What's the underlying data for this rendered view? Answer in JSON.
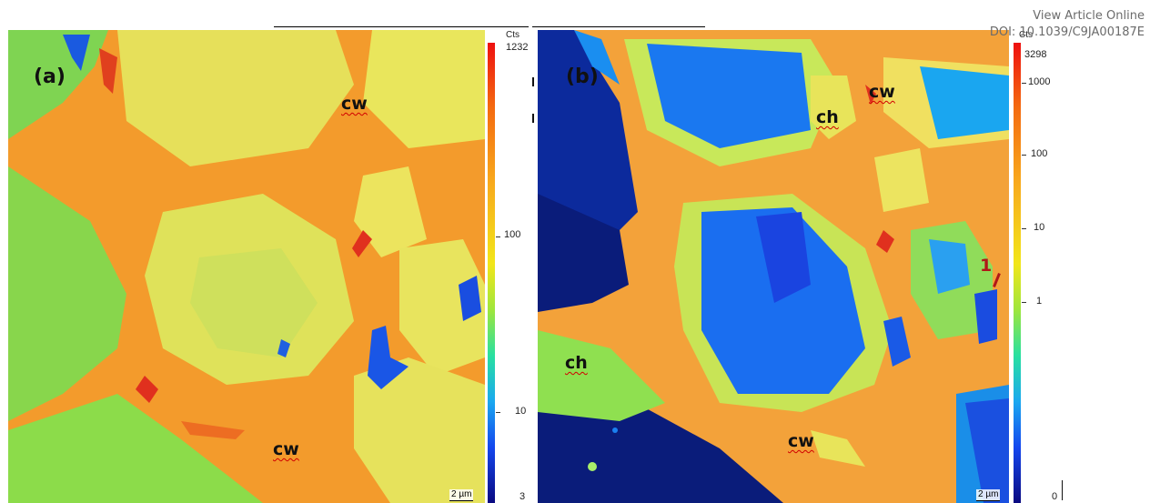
{
  "header": {
    "line1": "View Article Online",
    "line2": "DOI: 10.1039/C9JA00187E"
  },
  "panel_a": {
    "label": "(a)",
    "regions": [
      "cw",
      "cw"
    ],
    "scalebar": "2 µm",
    "colorbar": {
      "unit": "Cts",
      "max": "1232",
      "ticks": [
        "100",
        "10",
        "3"
      ]
    }
  },
  "panel_b": {
    "label": "(b)",
    "regions": [
      "cw",
      "ch",
      "ch",
      "cw"
    ],
    "marker": "1",
    "scalebar": "2 µm",
    "colorbar": {
      "unit": "Cts",
      "max": "3298",
      "ticks": [
        "1000",
        "100",
        "10",
        "1",
        "0"
      ]
    }
  },
  "colors": {
    "cell_wall": "#f59a2a",
    "lumen_a": "#e8e85a",
    "background_a": "#8fd84a",
    "chloroplast": "#1a50e0",
    "void": "#0a1c7a"
  }
}
